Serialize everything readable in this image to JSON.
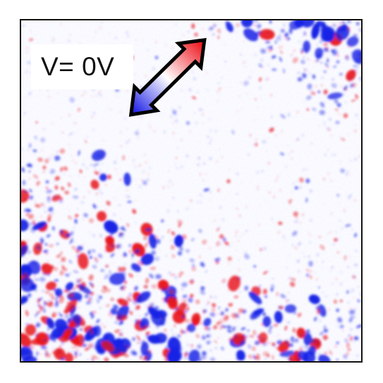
{
  "image": {
    "label": "V= 0V",
    "colors": {
      "positive": "#e8141c",
      "negative": "#1622e6",
      "neutral": "#ffffff",
      "border": "#111111"
    },
    "arrow_icon": "double-headed-arrow-icon"
  }
}
